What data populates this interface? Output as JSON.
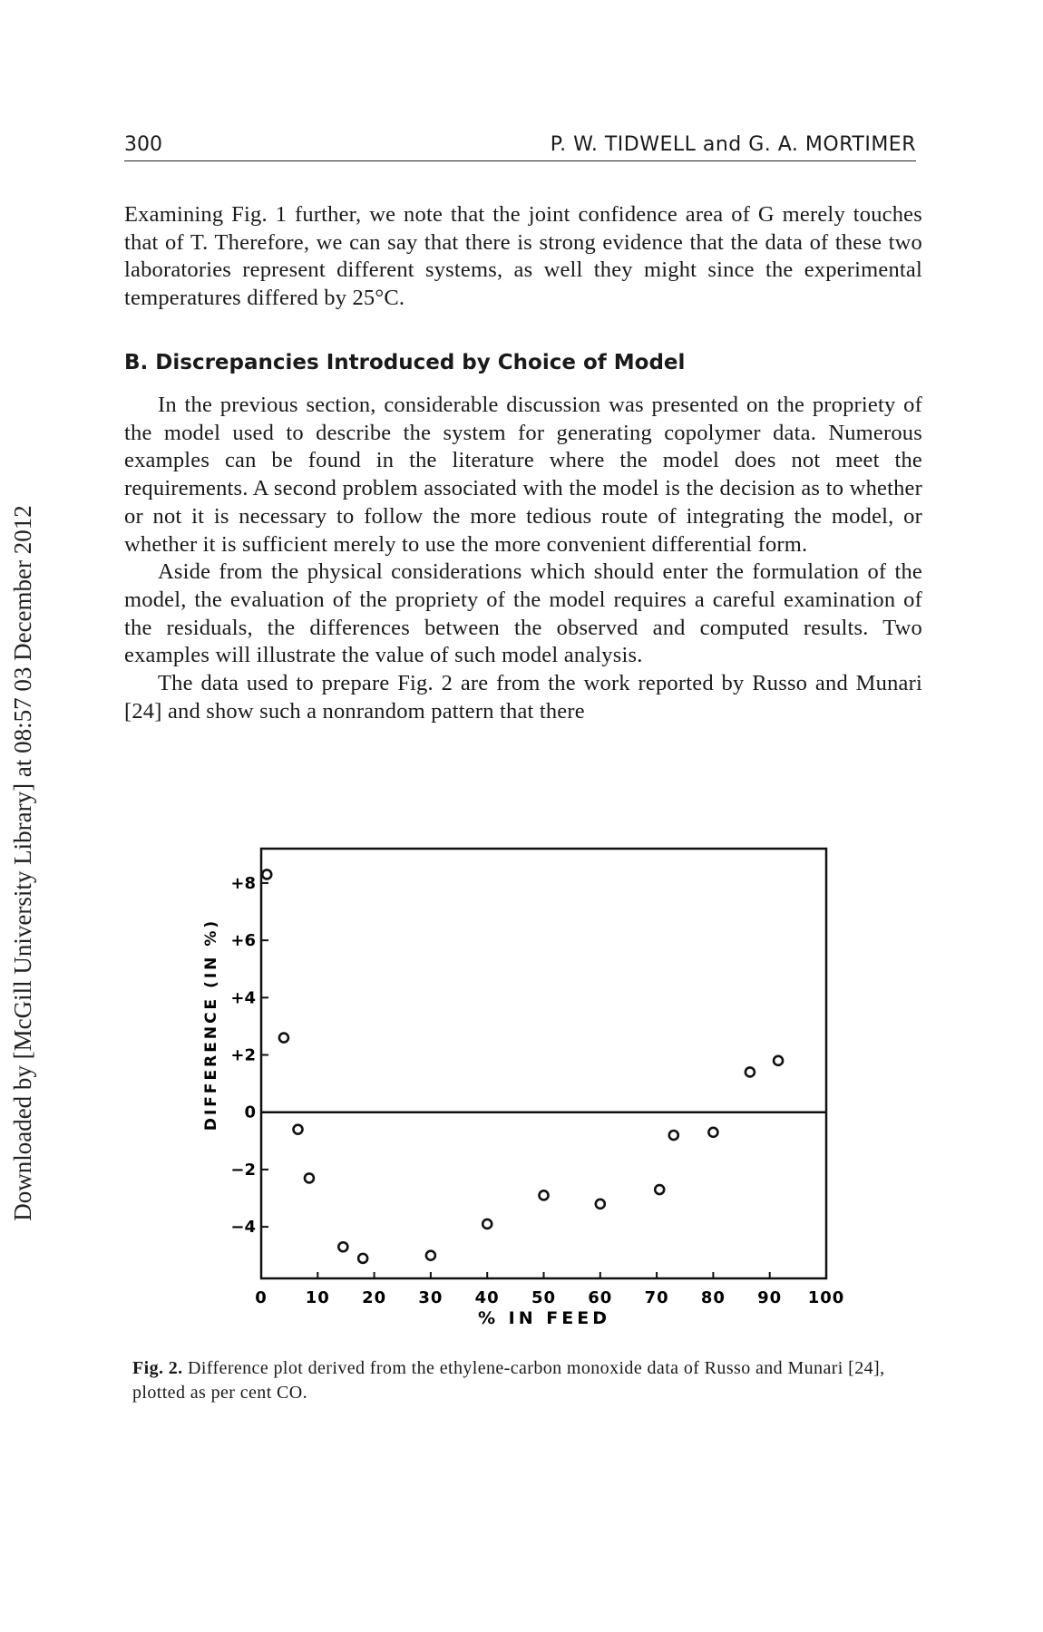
{
  "header": {
    "page_number": "300",
    "authors": "P. W. TIDWELL and G. A. MORTIMER"
  },
  "sidebar_stamp": "Downloaded by [McGill University Library] at 08:57 03 December 2012",
  "paragraphs": [
    "Examining Fig. 1 further, we note that the joint confidence area of G merely touches that of T. Therefore, we can say that there is strong evidence that the data of these two laboratories represent different systems, as well they might since the experimental temperatures differed by 25°C.",
    "In the previous section, considerable discussion was presented on the propriety of the model used to describe the system for generating copolymer data. Numerous examples can be found in the literature where the model does not meet the requirements. A second problem associated with the model is the decision as to whether or not it is necessary to follow the more tedious route of integrating the model, or whether it is sufficient merely to use the more convenient differential form.",
    "Aside from the physical considerations which should enter the formulation of the model, the evaluation of the propriety of the model requires a careful examination of the residuals, the differences between the observed and computed results. Two examples will illustrate the value of such model analysis.",
    "The data used to prepare Fig. 2 are from the work reported by Russo and Munari [24] and show such a nonrandom pattern that there"
  ],
  "section_heading": "B. Discrepancies Introduced by Choice of Model",
  "caption": {
    "label": "Fig. 2.",
    "text": "Difference plot derived from the ethylene-carbon monoxide data of Russo and Munari [24], plotted as per cent CO."
  },
  "chart_data": {
    "type": "scatter",
    "title": "",
    "xlabel": "% IN FEED",
    "ylabel": "DIFFERENCE (IN %)",
    "xlim": [
      0,
      100
    ],
    "ylim": [
      -5.8,
      9.2
    ],
    "x_ticks": [
      0,
      10,
      20,
      30,
      40,
      50,
      60,
      70,
      80,
      90,
      100
    ],
    "x_tick_labels": [
      "0",
      "10",
      "20",
      "30",
      "40",
      "50",
      "60",
      "70",
      "80",
      "90",
      "100"
    ],
    "y_ticks": [
      8,
      6,
      4,
      2,
      0,
      -2,
      -4
    ],
    "y_tick_labels": [
      "+8",
      "+6",
      "+4",
      "+2",
      "0",
      "−2",
      "−4"
    ],
    "zero_line": true,
    "grid": false,
    "marker": "open-circle",
    "points": [
      {
        "x": 1.0,
        "y": 8.3
      },
      {
        "x": 4.0,
        "y": 2.6
      },
      {
        "x": 6.5,
        "y": -0.6
      },
      {
        "x": 8.5,
        "y": -2.3
      },
      {
        "x": 14.5,
        "y": -4.7
      },
      {
        "x": 18.0,
        "y": -5.1
      },
      {
        "x": 30.0,
        "y": -5.0
      },
      {
        "x": 40.0,
        "y": -3.9
      },
      {
        "x": 50.0,
        "y": -2.9
      },
      {
        "x": 60.0,
        "y": -3.2
      },
      {
        "x": 70.5,
        "y": -2.7
      },
      {
        "x": 73.0,
        "y": -0.8
      },
      {
        "x": 80.0,
        "y": -0.7
      },
      {
        "x": 86.5,
        "y": 1.4
      },
      {
        "x": 91.5,
        "y": 1.8
      }
    ]
  }
}
